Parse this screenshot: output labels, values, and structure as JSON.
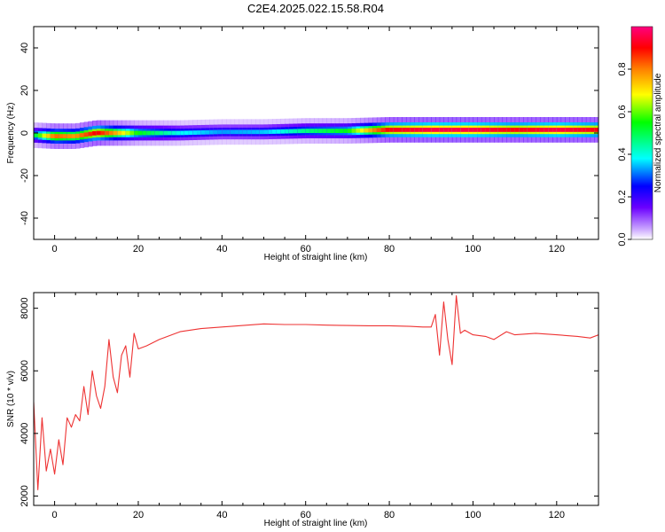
{
  "title": "C2E4.2025.022.15.58.R04",
  "chart_data": [
    {
      "type": "heatmap",
      "xlabel": "Height of straight line (km)",
      "ylabel": "Frequency (Hz)",
      "xlim": [
        -5,
        130
      ],
      "ylim": [
        -50,
        50
      ],
      "xticks": [
        0,
        20,
        40,
        60,
        80,
        100,
        120
      ],
      "yticks": [
        -40,
        -20,
        0,
        20,
        40
      ],
      "colorbar": {
        "label": "Normalized spectral amplitude",
        "range": [
          0,
          1
        ],
        "ticks": [
          "0.0",
          "0.2",
          "0.4",
          "0.6",
          "0.8"
        ],
        "colormap": [
          "#ffffff",
          "#c9a3ff",
          "#6a00ff",
          "#0000ff",
          "#00ffff",
          "#00ff00",
          "#ffff00",
          "#ff8000",
          "#ff0000",
          "#ff0080"
        ]
      },
      "ridge": {
        "x": [
          -5,
          0,
          5,
          10,
          20,
          30,
          40,
          50,
          60,
          70,
          80,
          90,
          100,
          110,
          120,
          130
        ],
        "freq": [
          -1,
          -1.5,
          -1.5,
          0,
          0,
          0,
          0.5,
          0.5,
          1,
          1,
          1.5,
          1.5,
          1.5,
          1.5,
          1.5,
          1.5
        ],
        "amplitude": [
          0.5,
          0.8,
          0.75,
          0.9,
          0.55,
          0.45,
          0.4,
          0.42,
          0.5,
          0.55,
          0.9,
          0.95,
          0.95,
          0.9,
          0.95,
          0.9
        ]
      }
    },
    {
      "type": "line",
      "xlabel": "Height of straight line (km)",
      "ylabel": "SNR (10 * v/v)",
      "xlim": [
        -5,
        130
      ],
      "ylim": [
        1700,
        8500
      ],
      "xticks": [
        0,
        20,
        40,
        60,
        80,
        100,
        120
      ],
      "yticks": [
        2000,
        4000,
        6000,
        8000
      ],
      "color": "#ee3333",
      "x": [
        -5,
        -4,
        -3,
        -2,
        -1,
        0,
        1,
        2,
        3,
        4,
        5,
        6,
        7,
        8,
        9,
        10,
        11,
        12,
        13,
        14,
        15,
        16,
        17,
        18,
        19,
        20,
        22,
        25,
        28,
        30,
        35,
        40,
        45,
        50,
        55,
        60,
        65,
        70,
        75,
        80,
        85,
        88,
        90,
        91,
        92,
        93,
        94,
        95,
        96,
        97,
        98,
        100,
        103,
        105,
        108,
        110,
        115,
        120,
        125,
        128,
        130
      ],
      "y": [
        5000,
        2200,
        4500,
        2800,
        3500,
        2700,
        3800,
        3000,
        4500,
        4200,
        4600,
        4400,
        5500,
        4600,
        6000,
        5200,
        4800,
        5500,
        7000,
        5800,
        5300,
        6500,
        6800,
        5800,
        7200,
        6700,
        6800,
        7000,
        7150,
        7250,
        7350,
        7400,
        7450,
        7500,
        7480,
        7480,
        7460,
        7450,
        7440,
        7440,
        7420,
        7400,
        7400,
        7800,
        6500,
        8200,
        7000,
        6200,
        8400,
        7200,
        7300,
        7150,
        7100,
        7000,
        7250,
        7150,
        7200,
        7150,
        7100,
        7050,
        7150
      ]
    }
  ]
}
